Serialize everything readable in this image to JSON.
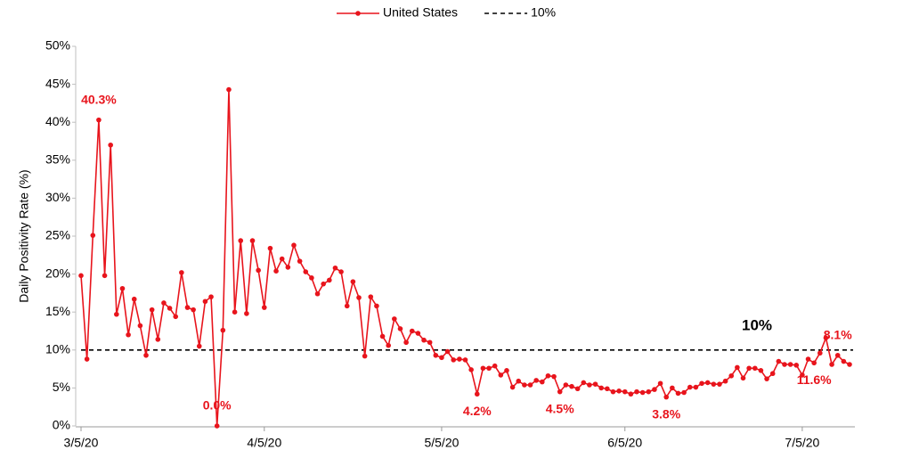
{
  "chart_data": {
    "type": "line",
    "y_label": "Daily Positivity Rate (%)",
    "categories": [
      "3/5/20",
      null,
      null,
      null,
      null,
      null,
      null,
      null,
      null,
      null,
      null,
      null,
      null,
      null,
      null,
      null,
      null,
      null,
      null,
      null,
      null,
      null,
      null,
      null,
      null,
      null,
      null,
      null,
      null,
      null,
      null,
      "4/5/20",
      null,
      null,
      null,
      null,
      null,
      null,
      null,
      null,
      null,
      null,
      null,
      null,
      null,
      null,
      null,
      null,
      null,
      null,
      null,
      null,
      null,
      null,
      null,
      null,
      null,
      null,
      null,
      null,
      null,
      "5/5/20",
      null,
      null,
      null,
      null,
      null,
      null,
      null,
      null,
      null,
      null,
      null,
      null,
      null,
      null,
      null,
      null,
      null,
      null,
      null,
      null,
      null,
      null,
      null,
      null,
      null,
      null,
      null,
      null,
      null,
      null,
      "6/5/20",
      null,
      null,
      null,
      null,
      null,
      null,
      null,
      null,
      null,
      null,
      null,
      null,
      null,
      null,
      null,
      null,
      null,
      null,
      null,
      null,
      null,
      null,
      null,
      null,
      null,
      null,
      null,
      null,
      null,
      "7/5/20",
      null,
      null,
      null,
      null,
      null,
      null,
      null,
      null
    ],
    "series": [
      {
        "name": "United States",
        "color": "#e8141c",
        "values": [
          19.8,
          8.8,
          25.1,
          40.3,
          19.8,
          37.0,
          14.7,
          18.1,
          12.0,
          16.7,
          13.2,
          9.3,
          15.3,
          11.4,
          16.2,
          15.5,
          14.4,
          20.2,
          15.6,
          15.3,
          10.5,
          16.4,
          17.0,
          0.0,
          12.6,
          44.3,
          15.0,
          24.4,
          14.8,
          24.4,
          20.5,
          15.6,
          23.4,
          20.4,
          22.0,
          20.9,
          23.8,
          21.7,
          20.3,
          19.5,
          17.4,
          18.7,
          19.2,
          20.8,
          20.3,
          15.8,
          19.0,
          16.9,
          9.2,
          17.0,
          15.8,
          11.8,
          10.6,
          14.1,
          12.8,
          11.0,
          12.5,
          12.2,
          11.3,
          11.0,
          9.3,
          9.0,
          9.8,
          8.7,
          8.8,
          8.7,
          7.4,
          4.2,
          7.6,
          7.6,
          7.9,
          6.7,
          7.3,
          5.1,
          5.9,
          5.4,
          5.4,
          6.0,
          5.8,
          6.6,
          6.5,
          4.5,
          5.4,
          5.2,
          4.9,
          5.7,
          5.4,
          5.5,
          5.0,
          4.9,
          4.5,
          4.6,
          4.5,
          4.2,
          4.5,
          4.4,
          4.5,
          4.8,
          5.6,
          3.8,
          5.0,
          4.3,
          4.4,
          5.1,
          5.1,
          5.6,
          5.7,
          5.5,
          5.5,
          5.9,
          6.6,
          7.7,
          6.3,
          7.6,
          7.6,
          7.3,
          6.2,
          6.9,
          8.5,
          8.1,
          8.1,
          8.0,
          6.7,
          8.8,
          8.3,
          9.6,
          11.6,
          8.1,
          9.3,
          8.5,
          8.1
        ],
        "value_labels": [
          null,
          null,
          null,
          "40.3%",
          null,
          null,
          null,
          null,
          null,
          null,
          null,
          null,
          null,
          null,
          null,
          null,
          null,
          null,
          null,
          null,
          null,
          null,
          null,
          "0.0%",
          null,
          null,
          null,
          null,
          null,
          null,
          null,
          null,
          null,
          null,
          null,
          null,
          null,
          null,
          null,
          null,
          null,
          null,
          null,
          null,
          null,
          null,
          null,
          null,
          null,
          null,
          null,
          null,
          null,
          null,
          null,
          null,
          null,
          null,
          null,
          null,
          null,
          null,
          null,
          null,
          null,
          null,
          null,
          "4.2%",
          null,
          null,
          null,
          null,
          null,
          null,
          null,
          null,
          null,
          null,
          null,
          null,
          null,
          "4.5%",
          null,
          null,
          null,
          null,
          null,
          null,
          null,
          null,
          null,
          null,
          null,
          null,
          null,
          null,
          null,
          null,
          null,
          "3.8%",
          null,
          null,
          null,
          null,
          null,
          null,
          null,
          null,
          null,
          null,
          null,
          null,
          null,
          null,
          null,
          null,
          null,
          null,
          null,
          null,
          null,
          null,
          null,
          null,
          "11.6%",
          null,
          null,
          null,
          "8.1%"
        ]
      }
    ],
    "reference_line": {
      "name": "10%",
      "value": 10,
      "color": "#000000",
      "annotation": "10%"
    },
    "ylim": [
      0,
      50
    ],
    "yticks": [
      {
        "value": 0,
        "label": "0%"
      },
      {
        "value": 5,
        "label": "5%"
      },
      {
        "value": 10,
        "label": "10%"
      },
      {
        "value": 15,
        "label": "15%"
      },
      {
        "value": 20,
        "label": "20%"
      },
      {
        "value": 25,
        "label": "25%"
      },
      {
        "value": 30,
        "label": "30%"
      },
      {
        "value": 35,
        "label": "35%"
      },
      {
        "value": 40,
        "label": "40%"
      },
      {
        "value": 45,
        "label": "45%"
      },
      {
        "value": 50,
        "label": "50%"
      }
    ],
    "grid": false,
    "legend": "top"
  }
}
